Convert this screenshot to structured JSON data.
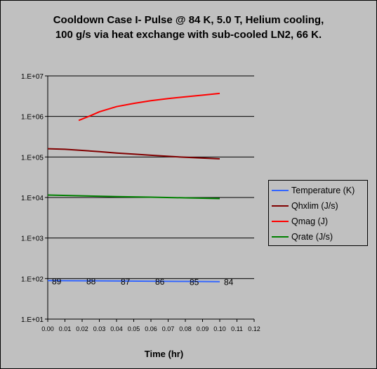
{
  "chart_data": {
    "type": "line",
    "title_lines": [
      "Cooldown Case I- Pulse @ 84 K, 5.0 T, Helium cooling,",
      "100 g/s via heat exchange with sub-cooled LN2, 66 K."
    ],
    "xlabel": "Time (hr)",
    "ylabel": "",
    "y_scale": "log",
    "xlim": [
      0,
      0.12
    ],
    "ylim": [
      10,
      10000000
    ],
    "x_ticks": [
      "0.00",
      "0.01",
      "0.02",
      "0.03",
      "0.04",
      "0.05",
      "0.06",
      "0.07",
      "0.08",
      "0.09",
      "0.10",
      "0.11",
      "0.12"
    ],
    "y_ticks": [
      "1.E+01",
      "1.E+02",
      "1.E+03",
      "1.E+04",
      "1.E+05",
      "1.E+06",
      "1.E+07"
    ],
    "grid": "horizontal major lines",
    "legend_position": "right",
    "series": [
      {
        "name": "Temperature (K)",
        "color": "#3366ff",
        "x": [
          0.0,
          0.02,
          0.04,
          0.06,
          0.08,
          0.1
        ],
        "y": [
          89,
          88,
          87,
          86,
          85,
          84
        ],
        "point_labels": [
          "89",
          "88",
          "87",
          "86",
          "85",
          "84"
        ]
      },
      {
        "name": "Qhxlim (J/s)",
        "color": "#800000",
        "x": [
          0.0,
          0.01,
          0.02,
          0.03,
          0.04,
          0.05,
          0.06,
          0.07,
          0.08,
          0.09,
          0.1
        ],
        "y": [
          160000,
          155000,
          145000,
          135000,
          125000,
          118000,
          110000,
          104000,
          98000,
          94000,
          90000
        ]
      },
      {
        "name": "Qmag  (J)",
        "color": "#ff0000",
        "x": [
          0.018,
          0.025,
          0.03,
          0.04,
          0.05,
          0.06,
          0.07,
          0.08,
          0.09,
          0.1
        ],
        "y": [
          800000,
          1050000,
          1300000,
          1750000,
          2100000,
          2450000,
          2750000,
          3050000,
          3350000,
          3700000
        ]
      },
      {
        "name": "Qrate  (J/s)",
        "color": "#008000",
        "x": [
          0.0,
          0.02,
          0.04,
          0.06,
          0.08,
          0.1
        ],
        "y": [
          11500,
          11000,
          10500,
          10200,
          9800,
          9400
        ]
      }
    ]
  }
}
